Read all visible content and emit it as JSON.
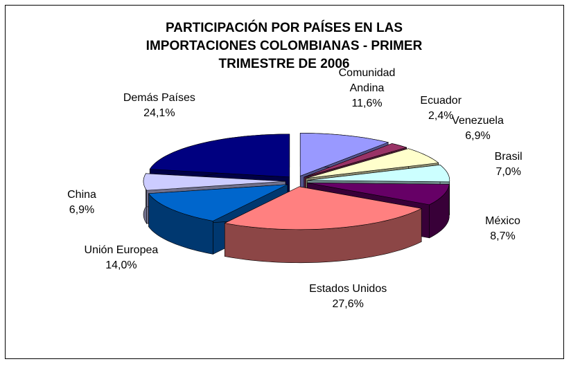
{
  "chart_data": {
    "type": "pie3d",
    "title": "PARTICIPACIÓN POR PAÍSES EN LAS IMPORTACIONES COLOMBIANAS - PRIMER TRIMESTRE DE 2006",
    "categories": [
      "Comunidad Andina",
      "Ecuador",
      "Venezuela",
      "Brasil",
      "México",
      "Estados Unidos",
      "Unión Europea",
      "China",
      "Demás Países"
    ],
    "values": [
      11.6,
      2.4,
      6.9,
      7.0,
      8.7,
      27.6,
      14.0,
      6.9,
      24.1
    ],
    "value_labels": [
      "11,6%",
      "2,4%",
      "6,9%",
      "7,0%",
      "8,7%",
      "27,6%",
      "14,0%",
      "6,9%",
      "24,1%"
    ],
    "colors": [
      "#9999ff",
      "#993366",
      "#ffffcc",
      "#ccffff",
      "#660066",
      "#ff8080",
      "#0066cc",
      "#ccccff",
      "#000080"
    ]
  }
}
